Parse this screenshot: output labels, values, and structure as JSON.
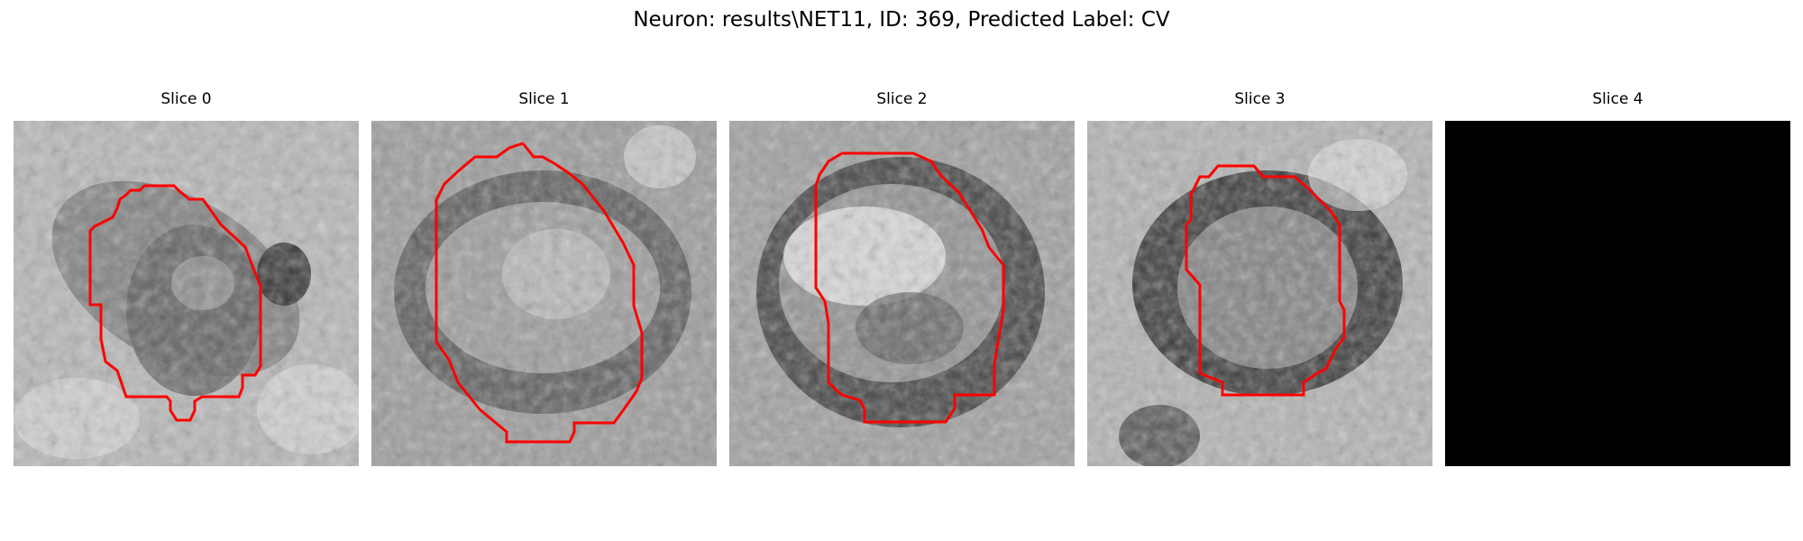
{
  "figure": {
    "title": "Neuron: results\\NET11, ID: 369, Predicted Label: CV"
  },
  "panels": [
    {
      "title": "Slice 0",
      "content": "grayscale-slice-with-red-outline"
    },
    {
      "title": "Slice 1",
      "content": "grayscale-slice-with-red-outline"
    },
    {
      "title": "Slice 2",
      "content": "grayscale-slice-with-red-outline"
    },
    {
      "title": "Slice 3",
      "content": "grayscale-slice-with-red-outline"
    },
    {
      "title": "Slice 4",
      "content": "black-empty-slice"
    }
  ],
  "colors": {
    "outline": "#ff0000",
    "empty_slice": "#000000"
  }
}
